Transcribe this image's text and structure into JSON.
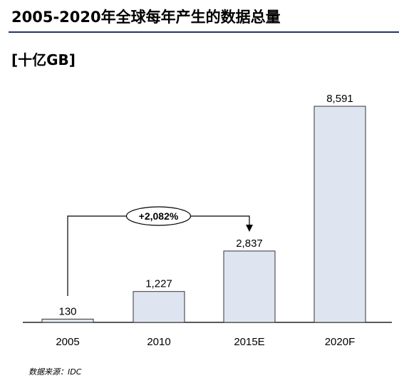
{
  "title": "2005-2020年全球每年产生的数据总量",
  "unit_label": "[十亿GB]",
  "source": "数据来源：IDC",
  "colors": {
    "bar_fill": "#dfe5f0",
    "bar_stroke": "#333333",
    "rule": "#1f3864"
  },
  "chart_data": {
    "type": "bar",
    "title": "2005-2020年全球每年产生的数据总量",
    "ylabel": "[十亿GB]",
    "xlabel": "",
    "categories": [
      "2005",
      "2010",
      "2015E",
      "2020F"
    ],
    "values": [
      130,
      1227,
      2837,
      8591
    ],
    "value_labels": [
      "130",
      "1,227",
      "2,837",
      "8,591"
    ],
    "ylim": [
      0,
      8591
    ],
    "grid": false,
    "legend": "none",
    "annotations": [
      {
        "text": "+2,082%",
        "from": "2005",
        "to": "2015E"
      }
    ]
  }
}
